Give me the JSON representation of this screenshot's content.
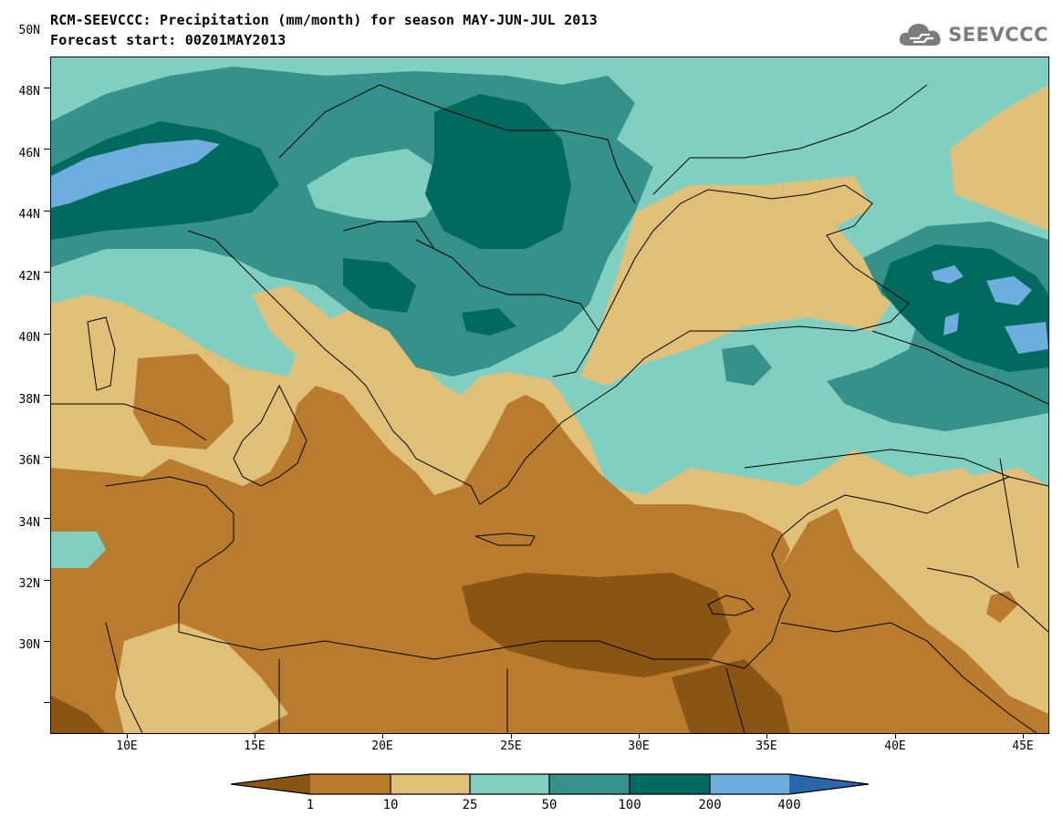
{
  "header": {
    "title_line1": "RCM-SEEVCCC: Precipitation (mm/month) for season MAY-JUN-JUL 2013",
    "title_line2": "Forecast start: 00Z01MAY2013",
    "logo_text": "SEEVCCC"
  },
  "map": {
    "lat_labels": [
      "50N",
      "48N",
      "46N",
      "44N",
      "42N",
      "40N",
      "38N",
      "36N",
      "34N",
      "32N",
      "30N"
    ],
    "lon_labels": [
      "10E",
      "15E",
      "20E",
      "25E",
      "30E",
      "35E",
      "40E",
      "45E"
    ]
  },
  "legend": {
    "levels": [
      "1",
      "10",
      "25",
      "50",
      "100",
      "200",
      "400"
    ],
    "colors": [
      "#8a5412",
      "#b97c2e",
      "#e0c079",
      "#80cfc0",
      "#35918a",
      "#016a5e",
      "#6eaede",
      "#2a67ab"
    ]
  }
}
